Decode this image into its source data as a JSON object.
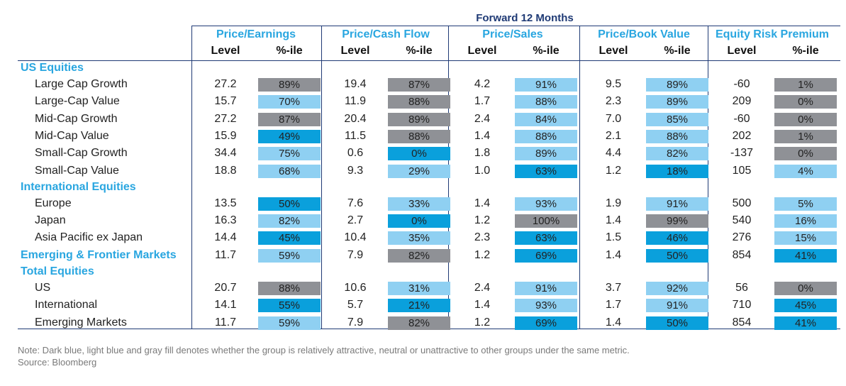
{
  "chart_data": {
    "type": "table",
    "title": "Forward 12 Months",
    "metrics": [
      "Price/Earnings",
      "Price/Cash Flow",
      "Price/Sales",
      "Price/Book Value",
      "Equity Risk Premium"
    ],
    "subcolumns": [
      "Level",
      "%-ile"
    ],
    "colors": {
      "dark": "#0aa0dc",
      "light": "#8fd0f2",
      "gray": "#8f9196"
    },
    "rows": [
      {
        "type": "section",
        "label": "US Equities"
      },
      {
        "label": "Large Cap Growth",
        "cells": [
          [
            "27.2",
            "89%",
            "gray"
          ],
          [
            "19.4",
            "87%",
            "gray"
          ],
          [
            "4.2",
            "91%",
            "light"
          ],
          [
            "9.5",
            "89%",
            "light"
          ],
          [
            "-60",
            "1%",
            "gray"
          ]
        ]
      },
      {
        "label": "Large-Cap Value",
        "cells": [
          [
            "15.7",
            "70%",
            "light"
          ],
          [
            "11.9",
            "88%",
            "gray"
          ],
          [
            "1.7",
            "88%",
            "light"
          ],
          [
            "2.3",
            "89%",
            "light"
          ],
          [
            "209",
            "0%",
            "gray"
          ]
        ]
      },
      {
        "label": "Mid-Cap Growth",
        "cells": [
          [
            "27.2",
            "87%",
            "gray"
          ],
          [
            "20.4",
            "89%",
            "gray"
          ],
          [
            "2.4",
            "84%",
            "light"
          ],
          [
            "7.0",
            "85%",
            "light"
          ],
          [
            "-60",
            "0%",
            "gray"
          ]
        ]
      },
      {
        "label": "Mid-Cap Value",
        "cells": [
          [
            "15.9",
            "49%",
            "dark"
          ],
          [
            "11.5",
            "88%",
            "gray"
          ],
          [
            "1.4",
            "88%",
            "light"
          ],
          [
            "2.1",
            "88%",
            "light"
          ],
          [
            "202",
            "1%",
            "gray"
          ]
        ]
      },
      {
        "label": "Small-Cap Growth",
        "cells": [
          [
            "34.4",
            "75%",
            "light"
          ],
          [
            "0.6",
            "0%",
            "dark"
          ],
          [
            "1.8",
            "89%",
            "light"
          ],
          [
            "4.4",
            "82%",
            "light"
          ],
          [
            "-137",
            "0%",
            "gray"
          ]
        ]
      },
      {
        "label": "Small-Cap Value",
        "cells": [
          [
            "18.8",
            "68%",
            "light"
          ],
          [
            "9.3",
            "29%",
            "light"
          ],
          [
            "1.0",
            "63%",
            "dark"
          ],
          [
            "1.2",
            "18%",
            "dark"
          ],
          [
            "105",
            "4%",
            "light"
          ]
        ]
      },
      {
        "type": "section",
        "label": "International Equities"
      },
      {
        "label": "Europe",
        "cells": [
          [
            "13.5",
            "50%",
            "dark"
          ],
          [
            "7.6",
            "33%",
            "light"
          ],
          [
            "1.4",
            "93%",
            "light"
          ],
          [
            "1.9",
            "91%",
            "light"
          ],
          [
            "500",
            "5%",
            "light"
          ]
        ]
      },
      {
        "label": "Japan",
        "cells": [
          [
            "16.3",
            "82%",
            "light"
          ],
          [
            "2.7",
            "0%",
            "dark"
          ],
          [
            "1.2",
            "100%",
            "gray"
          ],
          [
            "1.4",
            "99%",
            "gray"
          ],
          [
            "540",
            "16%",
            "light"
          ]
        ]
      },
      {
        "label": "Asia Pacific ex Japan",
        "cells": [
          [
            "14.4",
            "45%",
            "dark"
          ],
          [
            "10.4",
            "35%",
            "light"
          ],
          [
            "2.3",
            "63%",
            "dark"
          ],
          [
            "1.5",
            "46%",
            "dark"
          ],
          [
            "276",
            "15%",
            "light"
          ]
        ]
      },
      {
        "label": "Emerging & Frontier Markets",
        "bold": true,
        "indent": false,
        "cells": [
          [
            "11.7",
            "59%",
            "light"
          ],
          [
            "7.9",
            "82%",
            "gray"
          ],
          [
            "1.2",
            "69%",
            "dark"
          ],
          [
            "1.4",
            "50%",
            "dark"
          ],
          [
            "854",
            "41%",
            "dark"
          ]
        ]
      },
      {
        "type": "section",
        "label": "Total Equities"
      },
      {
        "label": "US",
        "cells": [
          [
            "20.7",
            "88%",
            "gray"
          ],
          [
            "10.6",
            "31%",
            "light"
          ],
          [
            "2.4",
            "91%",
            "light"
          ],
          [
            "3.7",
            "92%",
            "light"
          ],
          [
            "56",
            "0%",
            "gray"
          ]
        ]
      },
      {
        "label": "International",
        "cells": [
          [
            "14.1",
            "55%",
            "dark"
          ],
          [
            "5.7",
            "21%",
            "dark"
          ],
          [
            "1.4",
            "93%",
            "light"
          ],
          [
            "1.7",
            "91%",
            "light"
          ],
          [
            "710",
            "45%",
            "dark"
          ]
        ]
      },
      {
        "label": "Emerging Markets",
        "cells": [
          [
            "11.7",
            "59%",
            "light"
          ],
          [
            "7.9",
            "82%",
            "gray"
          ],
          [
            "1.2",
            "69%",
            "dark"
          ],
          [
            "1.4",
            "50%",
            "dark"
          ],
          [
            "854",
            "41%",
            "dark"
          ]
        ]
      }
    ]
  },
  "note": "Note: Dark blue, light blue and gray fill denotes whether the group is relatively attractive, neutral or unattractive to other groups under the same metric.",
  "source": "Source: Bloomberg"
}
